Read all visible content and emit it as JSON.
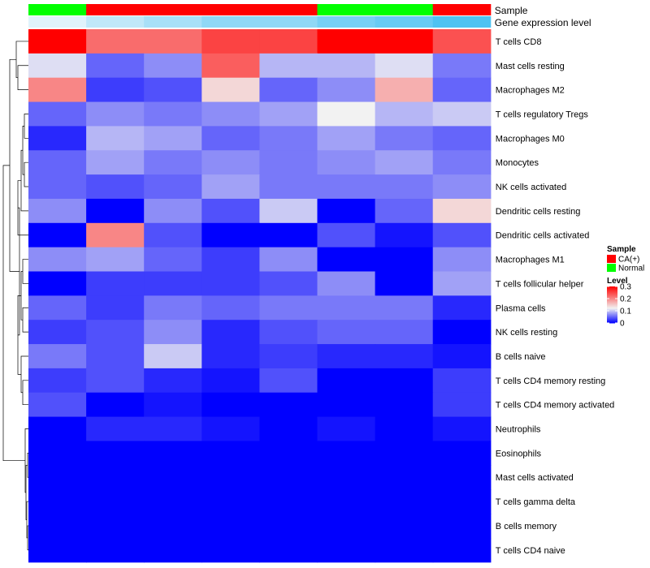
{
  "chart_data": {
    "type": "heatmap",
    "title": "",
    "column_annotations": [
      {
        "label": "Sample",
        "values": [
          "Normal",
          "CA(+)",
          "CA(+)",
          "CA(+)",
          "CA(+)",
          "Normal",
          "Normal",
          "CA(+)"
        ]
      },
      {
        "label": "Gene expression level",
        "values": [
          0.1,
          0.3,
          0.45,
          0.6,
          0.6,
          0.75,
          0.85,
          1.0
        ]
      }
    ],
    "rows": [
      "T cells CD8",
      "Mast cells resting",
      "Macrophages M2",
      "T cells regulatory  Tregs",
      "Macrophages M0",
      "Monocytes",
      "NK cells activated",
      "Dendritic cells resting",
      "Dendritic cells activated",
      "Macrophages M1",
      "T cells follicular helper",
      "Plasma cells",
      "NK cells resting",
      "B cells naive",
      "T cells CD4 memory resting",
      "T cells CD4 memory activated",
      "Neutrophils",
      "Eosinophils",
      "Mast cells activated",
      "T cells gamma delta",
      "B cells memory",
      "T cells CD4 naive"
    ],
    "values": [
      [
        0.3,
        0.22,
        0.22,
        0.25,
        0.25,
        0.3,
        0.3,
        0.24
      ],
      [
        0.11,
        0.05,
        0.07,
        0.23,
        0.09,
        0.09,
        0.11,
        0.06
      ],
      [
        0.2,
        0.03,
        0.04,
        0.14,
        0.05,
        0.07,
        0.17,
        0.05
      ],
      [
        0.05,
        0.07,
        0.06,
        0.07,
        0.08,
        0.12,
        0.09,
        0.1
      ],
      [
        0.02,
        0.09,
        0.08,
        0.05,
        0.06,
        0.08,
        0.06,
        0.05
      ],
      [
        0.05,
        0.08,
        0.06,
        0.07,
        0.06,
        0.07,
        0.08,
        0.06
      ],
      [
        0.05,
        0.04,
        0.05,
        0.08,
        0.06,
        0.06,
        0.06,
        0.07
      ],
      [
        0.07,
        0.0,
        0.07,
        0.04,
        0.1,
        0.0,
        0.05,
        0.14
      ],
      [
        0.0,
        0.2,
        0.04,
        0.0,
        0.0,
        0.04,
        0.01,
        0.04
      ],
      [
        0.07,
        0.08,
        0.05,
        0.03,
        0.07,
        0.0,
        0.0,
        0.07
      ],
      [
        0.0,
        0.03,
        0.03,
        0.03,
        0.04,
        0.07,
        0.0,
        0.08
      ],
      [
        0.05,
        0.03,
        0.06,
        0.05,
        0.06,
        0.06,
        0.06,
        0.02
      ],
      [
        0.03,
        0.04,
        0.07,
        0.02,
        0.04,
        0.05,
        0.05,
        0.0
      ],
      [
        0.06,
        0.04,
        0.1,
        0.02,
        0.03,
        0.02,
        0.02,
        0.01
      ],
      [
        0.03,
        0.04,
        0.02,
        0.01,
        0.04,
        0.0,
        0.0,
        0.03
      ],
      [
        0.04,
        0.0,
        0.01,
        0.0,
        0.0,
        0.0,
        0.0,
        0.03
      ],
      [
        0.0,
        0.02,
        0.02,
        0.01,
        0.0,
        0.01,
        0.0,
        0.01
      ],
      [
        0.0,
        0.0,
        0.0,
        0.0,
        0.0,
        0.0,
        0.0,
        0.0
      ],
      [
        0.0,
        0.0,
        0.0,
        0.0,
        0.0,
        0.0,
        0.0,
        0.0
      ],
      [
        0.0,
        0.0,
        0.0,
        0.0,
        0.0,
        0.0,
        0.0,
        0.0
      ],
      [
        0.0,
        0.0,
        0.0,
        0.0,
        0.0,
        0.0,
        0.0,
        0.0
      ],
      [
        0.0,
        0.0,
        0.0,
        0.0,
        0.0,
        0.0,
        0.0,
        0.0
      ]
    ],
    "color_scale": {
      "range": [
        0,
        0.3
      ],
      "stops": [
        {
          "value": 0.0,
          "color": "#0000ff"
        },
        {
          "value": 0.12,
          "color": "#f2f2f2"
        },
        {
          "value": 0.3,
          "color": "#ff0000"
        }
      ]
    },
    "row_dendrogram": true,
    "legend": {
      "placement": "right",
      "sample": {
        "title": "Sample",
        "items": [
          {
            "label": "CA(+)",
            "color": "#ff0000"
          },
          {
            "label": "Normal",
            "color": "#00ff00"
          }
        ]
      },
      "level": {
        "title": "Level",
        "ticks": [
          0.3,
          0.2,
          0.1,
          0
        ]
      }
    },
    "annotation_colors": {
      "sample": {
        "CA(+)": "#ff0000",
        "Normal": "#00ff00"
      },
      "gene_expression_level": {
        "low": "#f0f8fc",
        "high": "#4fc3f2"
      }
    }
  }
}
